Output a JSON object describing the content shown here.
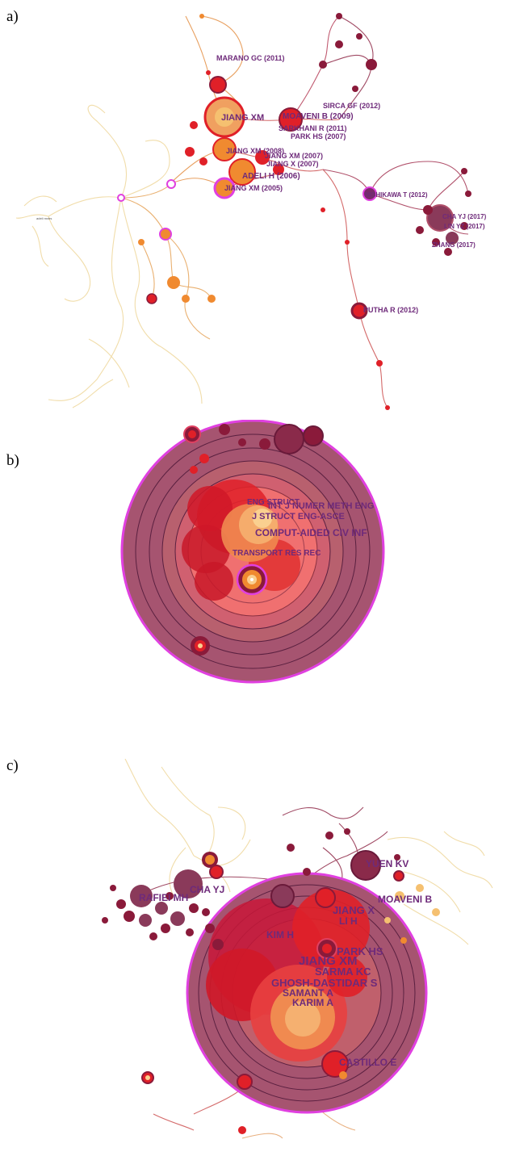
{
  "panels": [
    {
      "letter": "a)",
      "labels": [
        "MARANO GC (2011)",
        "SIRCA GF (2012)",
        "JIANG XM",
        "MOAVENI B (2009)",
        "SARKHANI R (2011)",
        "PARK HS (2007)",
        "JIANG XM (2008)",
        "JIANG XM (2007)",
        "JIANG X (2007)",
        "ADELI H (2006)",
        "JIANG XM (2005)",
        "NISHIKAWA T (2012)",
        "CHA YJ (2017)",
        "LIN YZ (2017)",
        "ZHANG (2017)",
        "PUTHA R (2012)"
      ],
      "small_text": "adeli mxtrs"
    },
    {
      "letter": "b)",
      "labels": [
        "ENG STRUCT",
        "INT J NUMER METH ENG",
        "J STRUCT ENG-ASCE",
        "COMPUT-AIDED CIV INF",
        "TRANSPORT RES REC"
      ]
    },
    {
      "letter": "c)",
      "labels": [
        "YUEN KV",
        "RAFIEI MH",
        "CHA YJ",
        "MOAVENI B",
        "JIANG X",
        "LI H",
        "KIM H",
        "PARK HS",
        "JIANG XM",
        "SARMA KC",
        "GHOSH-DASTIDAR S",
        "SAMANT A",
        "KARIM A",
        "CASTILLO E"
      ]
    }
  ],
  "colors": {
    "ring_outer": "#a04a64",
    "ring_border": "#e040e0",
    "label": "#6e2a7a",
    "node_red": "#e0202a",
    "node_orange": "#f08a30",
    "node_dark": "#8a1a3a",
    "edge_light": "#e8c690"
  }
}
